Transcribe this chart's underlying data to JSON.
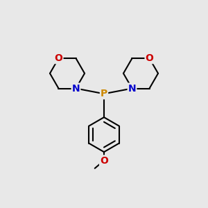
{
  "bg_color": "#e8e8e8",
  "atom_colors": {
    "P": "#cc8800",
    "N": "#0000cc",
    "O": "#cc0000",
    "C": "#000000"
  },
  "bond_color": "#000000",
  "bond_width": 1.5,
  "figsize": [
    3.0,
    3.0
  ],
  "dpi": 100
}
